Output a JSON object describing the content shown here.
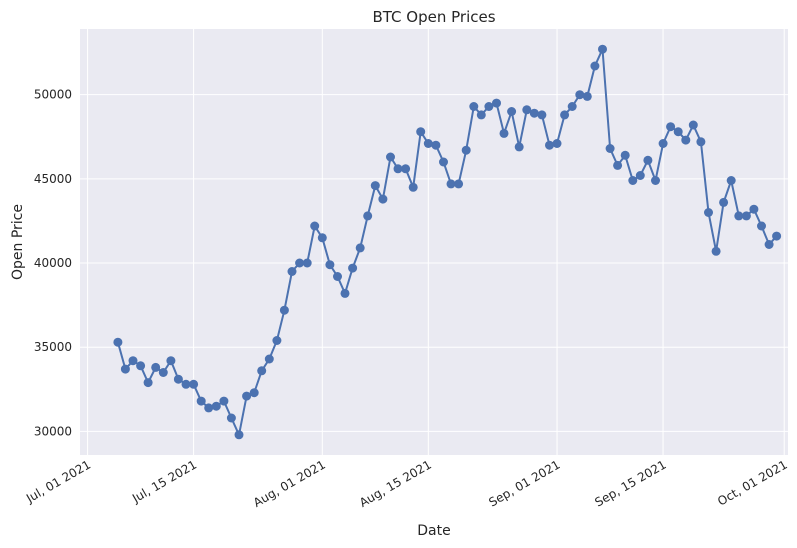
{
  "chart_data": {
    "type": "line",
    "title": "BTC Open Prices",
    "xlabel": "Date",
    "ylabel": "Open Price",
    "grid": true,
    "line_color": "#4c72b0",
    "background_color": "#eaeaf2",
    "x_start_day": 4,
    "xlim_days": [
      -1,
      92.5
    ],
    "ylim": [
      28600,
      53900
    ],
    "y_ticks": [
      30000,
      35000,
      40000,
      45000,
      50000
    ],
    "x_ticks": [
      {
        "day": 0,
        "label": "Jul, 01 2021"
      },
      {
        "day": 14,
        "label": "Jul, 15 2021"
      },
      {
        "day": 31,
        "label": "Aug, 01 2021"
      },
      {
        "day": 45,
        "label": "Aug, 15 2021"
      },
      {
        "day": 62,
        "label": "Sep, 01 2021"
      },
      {
        "day": 76,
        "label": "Sep, 15 2021"
      },
      {
        "day": 92,
        "label": "Oct, 01 2021"
      }
    ],
    "values": [
      35300,
      33700,
      34200,
      33900,
      32900,
      33800,
      33500,
      34200,
      33100,
      32800,
      32800,
      31800,
      31400,
      31500,
      31800,
      30800,
      29800,
      32100,
      32300,
      33600,
      34300,
      35400,
      37200,
      39500,
      40000,
      40000,
      42200,
      41500,
      39900,
      39200,
      38200,
      39700,
      40900,
      42800,
      44600,
      43800,
      46300,
      45600,
      45600,
      44500,
      47800,
      47100,
      47000,
      46000,
      44700,
      44700,
      46700,
      49300,
      48800,
      49300,
      49500,
      47700,
      49000,
      46900,
      49100,
      48900,
      48800,
      47000,
      47100,
      48800,
      49300,
      50000,
      49900,
      51700,
      52700,
      46800,
      45800,
      46400,
      44900,
      45200,
      46100,
      44900,
      47100,
      48100,
      47800,
      47300,
      48200,
      47200,
      43000,
      40700,
      43600,
      44900,
      42800,
      42800,
      43200,
      42200,
      41100,
      41600
    ]
  }
}
